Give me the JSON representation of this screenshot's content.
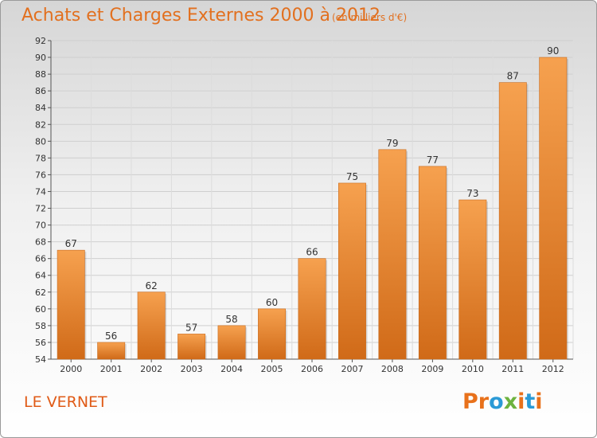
{
  "title": "Achats et Charges Externes 2000 à 2012",
  "subtitle": "(en milliers d'€)",
  "commune": "LE VERNET",
  "logo": {
    "text": "Proxiti",
    "colors": [
      "#e8711b",
      "#e8711b",
      "#2a9ad6",
      "#6db33f",
      "#e8711b",
      "#2a9ad6",
      "#e8711b"
    ]
  },
  "chart_data": {
    "type": "bar",
    "categories": [
      "2000",
      "2001",
      "2002",
      "2003",
      "2004",
      "2005",
      "2006",
      "2007",
      "2008",
      "2009",
      "2010",
      "2011",
      "2012"
    ],
    "values": [
      67,
      56,
      62,
      57,
      58,
      60,
      66,
      75,
      79,
      77,
      73,
      87,
      90
    ],
    "ylim": [
      54,
      92
    ],
    "yticks": [
      54,
      56,
      58,
      60,
      62,
      64,
      66,
      68,
      70,
      72,
      74,
      76,
      78,
      80,
      82,
      84,
      86,
      88,
      90,
      92
    ],
    "grid": true,
    "bar_color_top": "#f6a14f",
    "bar_color_bottom": "#d06a18"
  }
}
